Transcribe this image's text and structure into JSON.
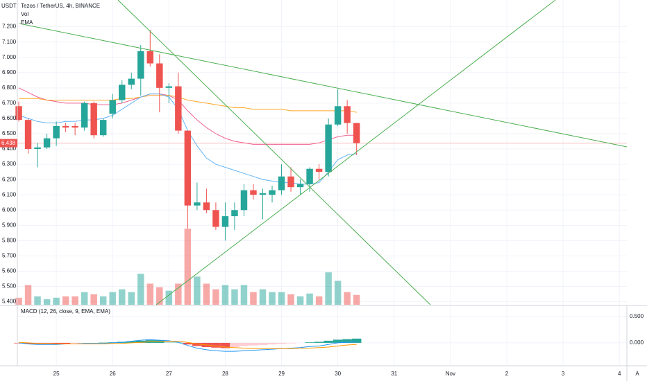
{
  "chart_data": {
    "type": "candlestick",
    "title": "Tezos / TetherUS, 4h, BINANCE",
    "currency": "USDT",
    "legend_items": [
      "Vol",
      "EMA"
    ],
    "up_color": "#26a69a",
    "down_color": "#ef5350",
    "open": [
      6.68,
      6.59,
      6.4,
      6.41,
      6.47,
      6.55,
      6.55,
      6.54,
      6.7,
      6.49,
      6.63,
      6.72,
      6.82,
      6.86,
      7.04,
      6.96,
      6.8,
      6.81,
      6.52,
      6.03,
      6.05,
      6.0,
      5.89,
      5.96,
      6.0,
      6.13,
      6.1,
      6.1,
      6.13,
      6.22,
      6.15,
      6.17,
      6.27,
      6.25,
      6.56,
      6.68,
      6.57
    ],
    "high": [
      6.71,
      6.6,
      6.44,
      6.5,
      6.58,
      6.57,
      6.57,
      6.71,
      6.71,
      6.6,
      6.76,
      6.85,
      6.9,
      7.08,
      7.18,
      7.02,
      6.83,
      6.9,
      6.52,
      6.18,
      6.14,
      6.05,
      6.05,
      6.05,
      6.17,
      6.17,
      6.14,
      6.16,
      6.3,
      6.28,
      6.2,
      6.28,
      6.3,
      6.6,
      6.79,
      6.72,
      6.57
    ],
    "low": [
      6.58,
      6.37,
      6.28,
      6.4,
      6.42,
      6.51,
      6.49,
      6.52,
      6.47,
      6.48,
      6.6,
      6.7,
      6.79,
      6.75,
      6.94,
      6.64,
      6.7,
      6.5,
      5.88,
      6.0,
      5.98,
      5.87,
      5.8,
      5.87,
      5.96,
      6.07,
      5.94,
      6.05,
      6.1,
      6.12,
      6.1,
      6.12,
      6.2,
      6.22,
      6.55,
      6.5,
      6.36
    ],
    "close": [
      6.59,
      6.4,
      6.41,
      6.47,
      6.55,
      6.54,
      6.54,
      6.7,
      6.49,
      6.59,
      6.72,
      6.82,
      6.86,
      7.04,
      6.96,
      6.8,
      6.81,
      6.52,
      6.03,
      6.05,
      6.0,
      5.89,
      5.96,
      6.0,
      6.13,
      6.1,
      6.11,
      6.13,
      6.22,
      6.15,
      6.17,
      6.27,
      6.25,
      6.56,
      6.68,
      6.57,
      6.438
    ],
    "volume": [
      10,
      28,
      12,
      8,
      10,
      12,
      12,
      18,
      15,
      12,
      18,
      22,
      18,
      44,
      30,
      25,
      20,
      30,
      108,
      40,
      30,
      22,
      28,
      22,
      28,
      18,
      22,
      18,
      18,
      15,
      12,
      16,
      12,
      46,
      34,
      18,
      14
    ],
    "series": [
      {
        "color": "#f06292",
        "values": [
          6.8,
          6.77,
          6.74,
          6.72,
          6.71,
          6.7,
          6.7,
          6.7,
          6.69,
          6.69,
          6.69,
          6.7,
          6.72,
          6.74,
          6.76,
          6.76,
          6.75,
          6.72,
          6.65,
          6.59,
          6.54,
          6.5,
          6.47,
          6.45,
          6.44,
          6.43,
          6.43,
          6.43,
          6.43,
          6.43,
          6.43,
          6.43,
          6.44,
          6.46,
          6.48,
          6.49,
          6.49
        ]
      },
      {
        "color": "#ffa726",
        "values": [
          6.73,
          6.73,
          6.73,
          6.72,
          6.72,
          6.72,
          6.72,
          6.72,
          6.72,
          6.72,
          6.72,
          6.73,
          6.73,
          6.74,
          6.75,
          6.75,
          6.75,
          6.74,
          6.72,
          6.71,
          6.7,
          6.69,
          6.68,
          6.67,
          6.67,
          6.66,
          6.66,
          6.66,
          6.66,
          6.65,
          6.65,
          6.65,
          6.65,
          6.65,
          6.65,
          6.65,
          6.64
        ]
      },
      {
        "color": "#64b5f6",
        "values": [
          6.62,
          6.6,
          6.58,
          6.57,
          6.57,
          6.58,
          6.58,
          6.59,
          6.59,
          6.6,
          6.62,
          6.66,
          6.7,
          6.74,
          6.76,
          6.76,
          6.74,
          6.66,
          6.52,
          6.42,
          6.34,
          6.3,
          6.28,
          6.26,
          6.24,
          6.22,
          6.2,
          6.19,
          6.18,
          6.18,
          6.17,
          6.17,
          6.18,
          6.25,
          6.33,
          6.36,
          6.37
        ]
      }
    ],
    "last_price": {
      "value": 6.438,
      "label": "6.438"
    },
    "ylim": [
      5.38,
      7.375
    ],
    "yticks": [
      {
        "value": 5.4,
        "label": "5.400"
      },
      {
        "value": 5.5,
        "label": "5.500"
      },
      {
        "value": 5.6,
        "label": "5.600"
      },
      {
        "value": 5.7,
        "label": "5.700"
      },
      {
        "value": 5.8,
        "label": "5.800"
      },
      {
        "value": 5.9,
        "label": "5.900"
      },
      {
        "value": 6.0,
        "label": "6.000"
      },
      {
        "value": 6.1,
        "label": "6.100"
      },
      {
        "value": 6.2,
        "label": "6.200"
      },
      {
        "value": 6.3,
        "label": "6.300"
      },
      {
        "value": 6.4,
        "label": "6.400"
      },
      {
        "value": 6.5,
        "label": "6.500"
      },
      {
        "value": 6.6,
        "label": "6.600"
      },
      {
        "value": 6.7,
        "label": "6.700"
      },
      {
        "value": 6.8,
        "label": "6.800"
      },
      {
        "value": 6.9,
        "label": "6.900"
      },
      {
        "value": 7.0,
        "label": "7.000"
      },
      {
        "value": 7.1,
        "label": "7.100"
      },
      {
        "value": 7.2,
        "label": "7.200"
      }
    ],
    "xlim": [
      -2,
      64.8
    ],
    "xticks": [
      {
        "value": 4,
        "label": "25"
      },
      {
        "value": 10,
        "label": "26"
      },
      {
        "value": 16,
        "label": "27"
      },
      {
        "value": 22,
        "label": "28"
      },
      {
        "value": 28,
        "label": "29"
      },
      {
        "value": 34,
        "label": "30"
      },
      {
        "value": 40,
        "label": "31"
      },
      {
        "value": 46,
        "label": "Nov"
      },
      {
        "value": 52,
        "label": "2"
      },
      {
        "value": 58,
        "label": "3"
      },
      {
        "value": 64,
        "label": "4"
      }
    ],
    "macd": {
      "title": "MACD (12, 26, close, 9, EMA, EMA)",
      "macd_color": "#2196f3",
      "signal_color": "#ff9800",
      "hist_colors": [
        "#26a69a",
        "#b2dfdb",
        "#ffcdd2",
        "#ef5350"
      ],
      "macd": [
        0,
        -0.02,
        -0.03,
        -0.03,
        -0.03,
        -0.02,
        -0.02,
        -0.01,
        -0.01,
        -0.01,
        0,
        0.01,
        0.03,
        0.05,
        0.06,
        0.05,
        0.04,
        0.01,
        -0.05,
        -0.1,
        -0.13,
        -0.15,
        -0.16,
        -0.16,
        -0.15,
        -0.14,
        -0.13,
        -0.12,
        -0.11,
        -0.1,
        -0.09,
        -0.07,
        -0.06,
        -0.03,
        0,
        0.01,
        0.02
      ],
      "signal": [
        0.01,
        0,
        -0.01,
        -0.01,
        -0.02,
        -0.02,
        -0.02,
        -0.02,
        -0.02,
        -0.02,
        -0.01,
        -0.01,
        0,
        0.01,
        0.02,
        0.03,
        0.03,
        0.03,
        0.01,
        -0.02,
        -0.04,
        -0.06,
        -0.08,
        -0.09,
        -0.1,
        -0.11,
        -0.11,
        -0.11,
        -0.11,
        -0.11,
        -0.1,
        -0.1,
        -0.09,
        -0.08,
        -0.06,
        -0.04,
        -0.03
      ],
      "histogram": [
        -0.01,
        -0.02,
        -0.02,
        -0.02,
        -0.02,
        -0.02,
        -0.01,
        0,
        0,
        0.005,
        0.01,
        0.02,
        0.03,
        0.04,
        0.05,
        0.05,
        0.04,
        0.02,
        -0.03,
        -0.06,
        -0.08,
        -0.09,
        -0.1,
        -0.08,
        -0.06,
        -0.05,
        -0.04,
        -0.03,
        -0.02,
        -0.01,
        0,
        0.01,
        0.02,
        0.04,
        0.06,
        0.07,
        0.08
      ],
      "ylim": [
        -0.42,
        0.68
      ],
      "yticks": [
        {
          "value": 0,
          "label": "0.000"
        },
        {
          "value": 0.5,
          "label": "0.500"
        }
      ]
    },
    "autoscale_label": "A"
  }
}
